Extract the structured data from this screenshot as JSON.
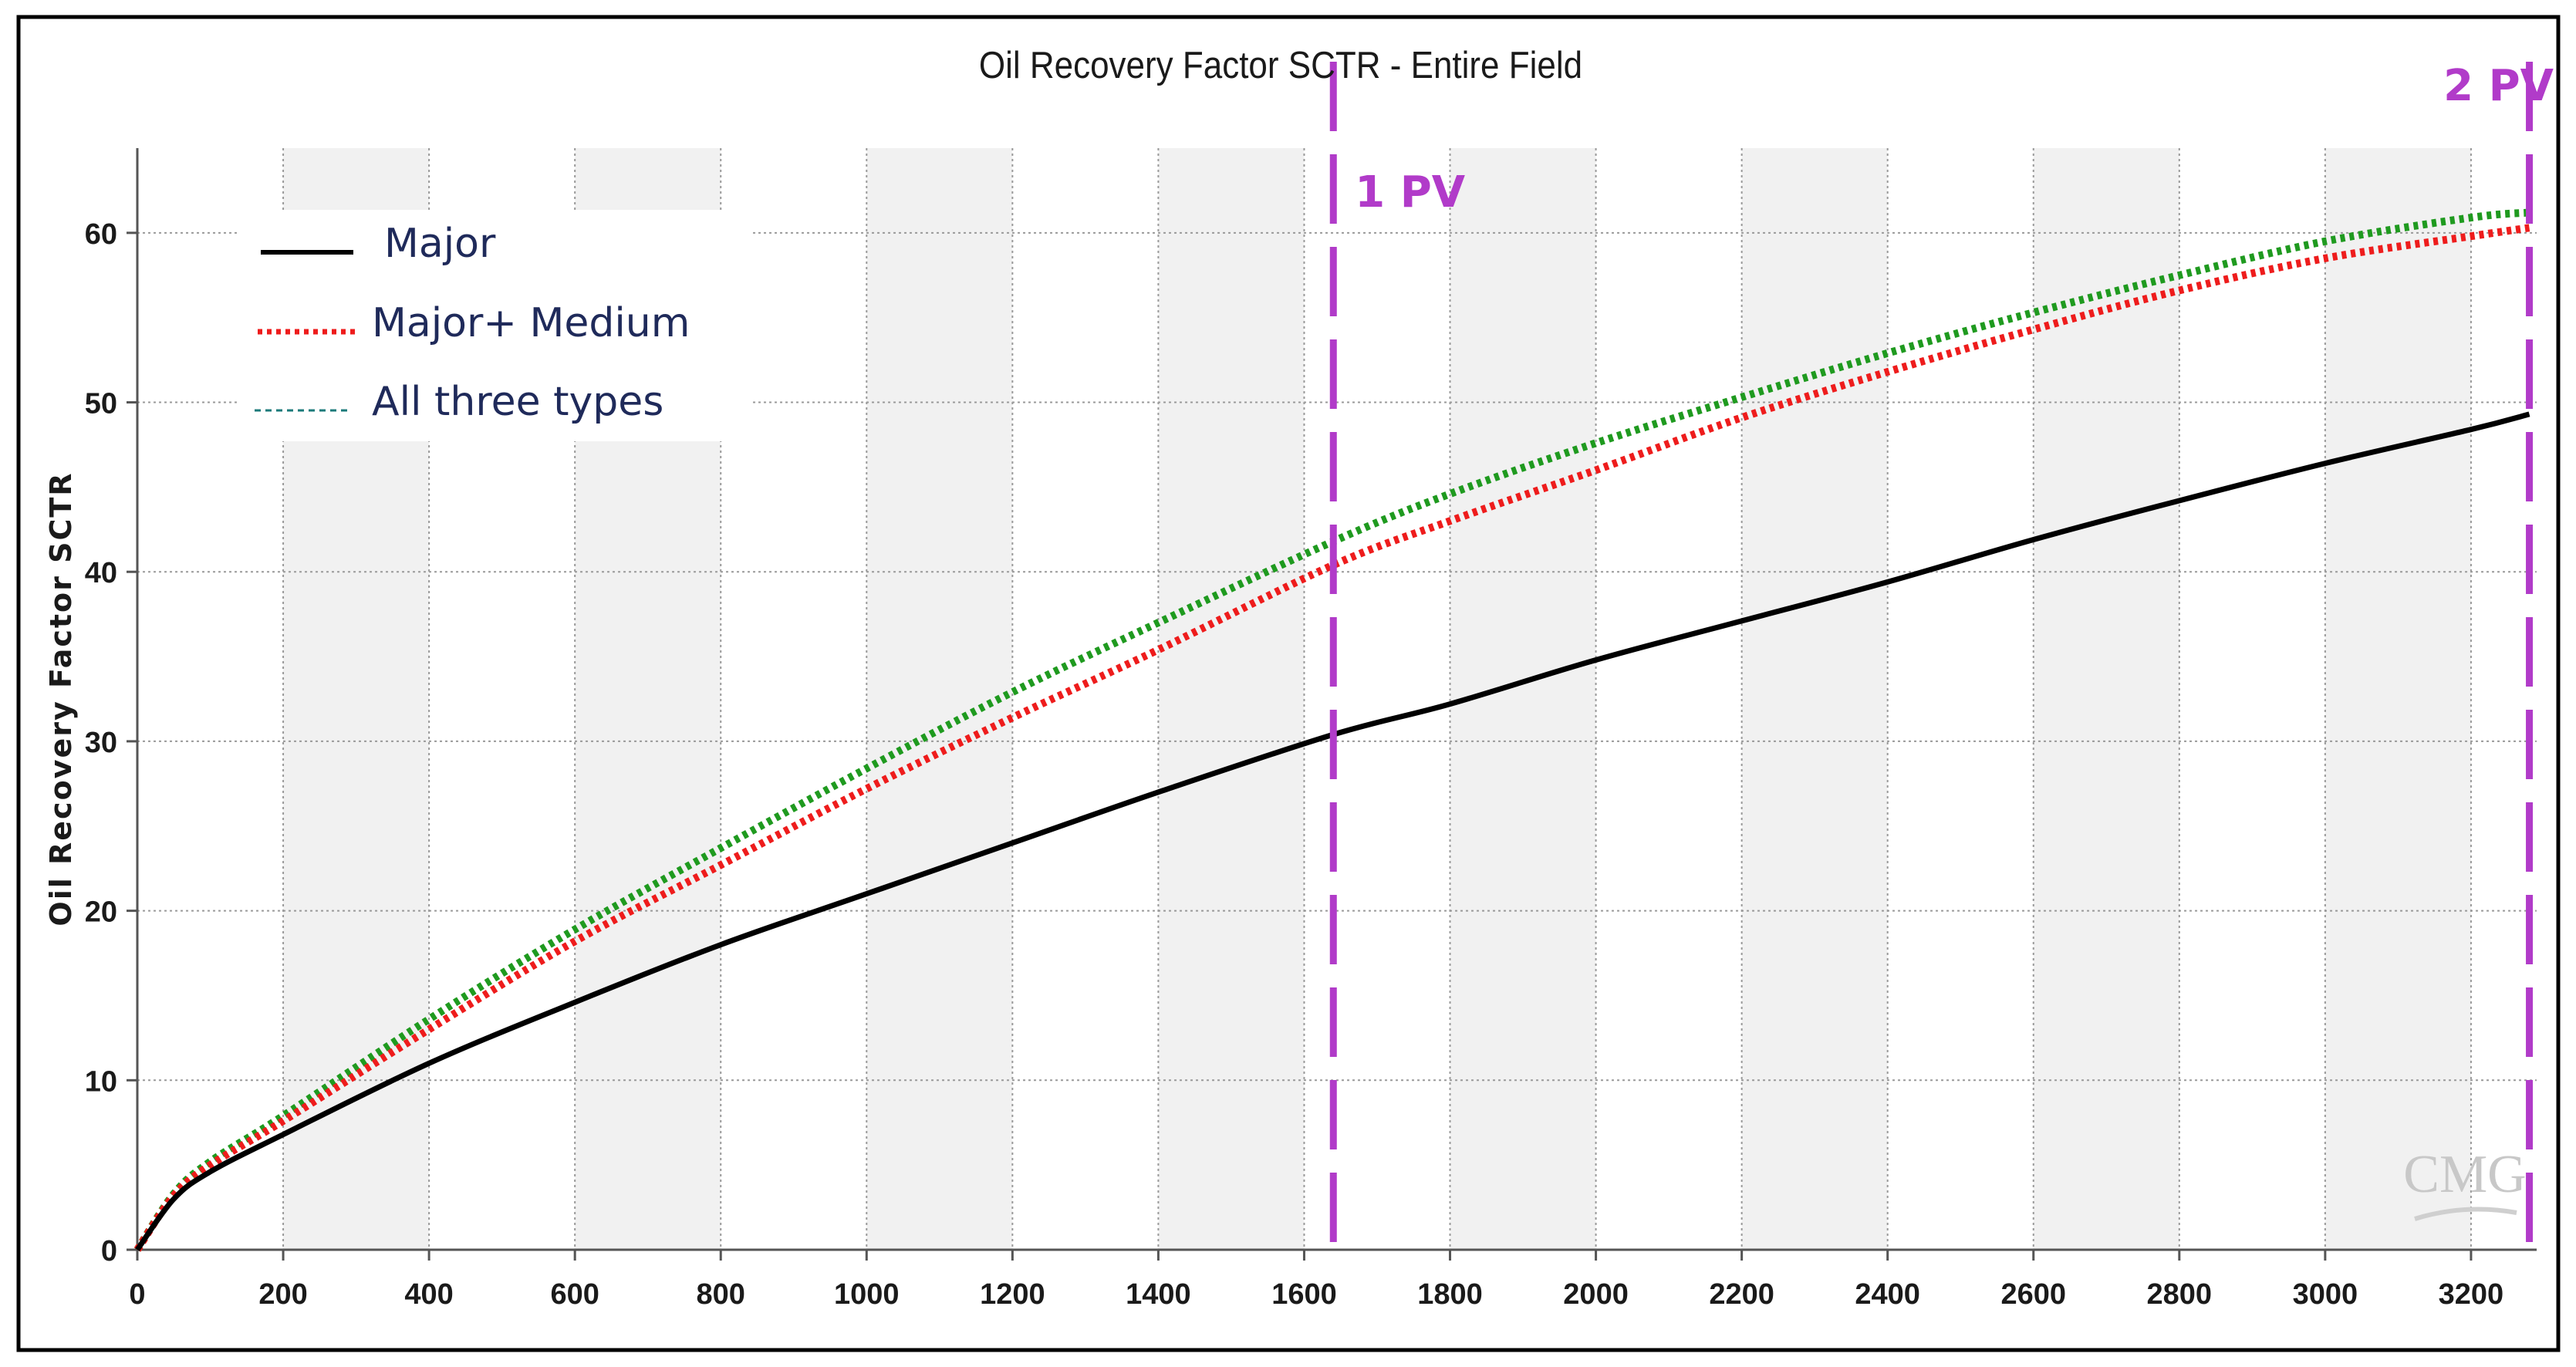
{
  "chart_data": {
    "type": "line",
    "title": "Oil Recovery Factor SCTR - Entire  Field",
    "xlabel": "",
    "ylabel": "Oil Recovery Factor SCTR",
    "xlim": [
      0,
      3290
    ],
    "ylim": [
      0,
      65
    ],
    "xticks": [
      0,
      200,
      400,
      600,
      800,
      1000,
      1200,
      1400,
      1600,
      1800,
      2000,
      2200,
      2400,
      2600,
      2800,
      3000,
      3200
    ],
    "yticks": [
      0,
      10,
      20,
      30,
      40,
      50,
      60
    ],
    "grid": true,
    "legend_position": "top-left",
    "series": [
      {
        "name": "Major",
        "color": "#000000",
        "style": "solid",
        "x": [
          0,
          50,
          100,
          200,
          400,
          600,
          800,
          1000,
          1200,
          1400,
          1640,
          1800,
          2000,
          2200,
          2400,
          2600,
          2800,
          3000,
          3200,
          3280
        ],
        "y": [
          0,
          3,
          4.6,
          6.8,
          11,
          14.6,
          18,
          21,
          24,
          27,
          30.4,
          32.2,
          34.8,
          37.1,
          39.4,
          41.9,
          44.2,
          46.4,
          48.4,
          49.3
        ]
      },
      {
        "name": "Major+ Medium",
        "color": "#ee1c1c",
        "style": "dotted",
        "x": [
          0,
          50,
          100,
          200,
          400,
          600,
          800,
          1000,
          1200,
          1400,
          1640,
          1800,
          2000,
          2200,
          2400,
          2600,
          2800,
          3000,
          3200,
          3280
        ],
        "y": [
          0,
          3.2,
          5,
          7.6,
          13,
          18.2,
          22.7,
          27.2,
          31.4,
          35.4,
          40.4,
          43,
          46,
          49.1,
          51.8,
          54.3,
          56.6,
          58.5,
          59.8,
          60.3
        ]
      },
      {
        "name": "All three types",
        "color": "#1f9a1f",
        "style": "dotted",
        "x": [
          0,
          50,
          100,
          200,
          400,
          600,
          800,
          1000,
          1200,
          1400,
          1640,
          1800,
          2000,
          2200,
          2400,
          2600,
          2800,
          3000,
          3200,
          3280
        ],
        "y": [
          0,
          3.3,
          5.2,
          7.9,
          13.6,
          18.9,
          23.7,
          28.4,
          32.9,
          37,
          41.8,
          44.6,
          47.6,
          50.3,
          52.9,
          55.3,
          57.5,
          59.5,
          60.9,
          61.2
        ]
      }
    ],
    "annotations": [
      {
        "text": "1 PV",
        "x": 1640,
        "color": "#b13bc9"
      },
      {
        "text": "2 PV",
        "x": 3280,
        "color": "#b13bc9"
      }
    ],
    "watermark": "CMG"
  }
}
